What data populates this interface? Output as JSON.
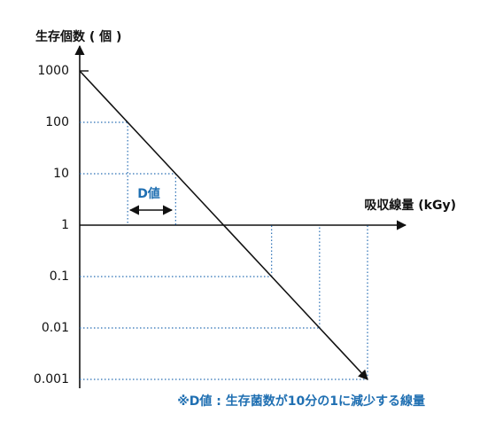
{
  "chart_data": {
    "type": "line",
    "y_label": "生存個数 ( 個 )",
    "x_label": "吸収線量 (kGy)",
    "categories": [
      null,
      null,
      null,
      null,
      null,
      null,
      null
    ],
    "values": [
      1000,
      100,
      10,
      1,
      0.1,
      0.01,
      0.001
    ],
    "ylim": [
      0.001,
      1000
    ],
    "yticks": [
      1000,
      100,
      10,
      1,
      0.1,
      0.01,
      0.001
    ],
    "log_scale": true,
    "color": "#111111",
    "guide_color": "#2a6fb5",
    "annotation": "D値",
    "note": "※D値 : 生存菌数が10分の1に減少する線量"
  }
}
